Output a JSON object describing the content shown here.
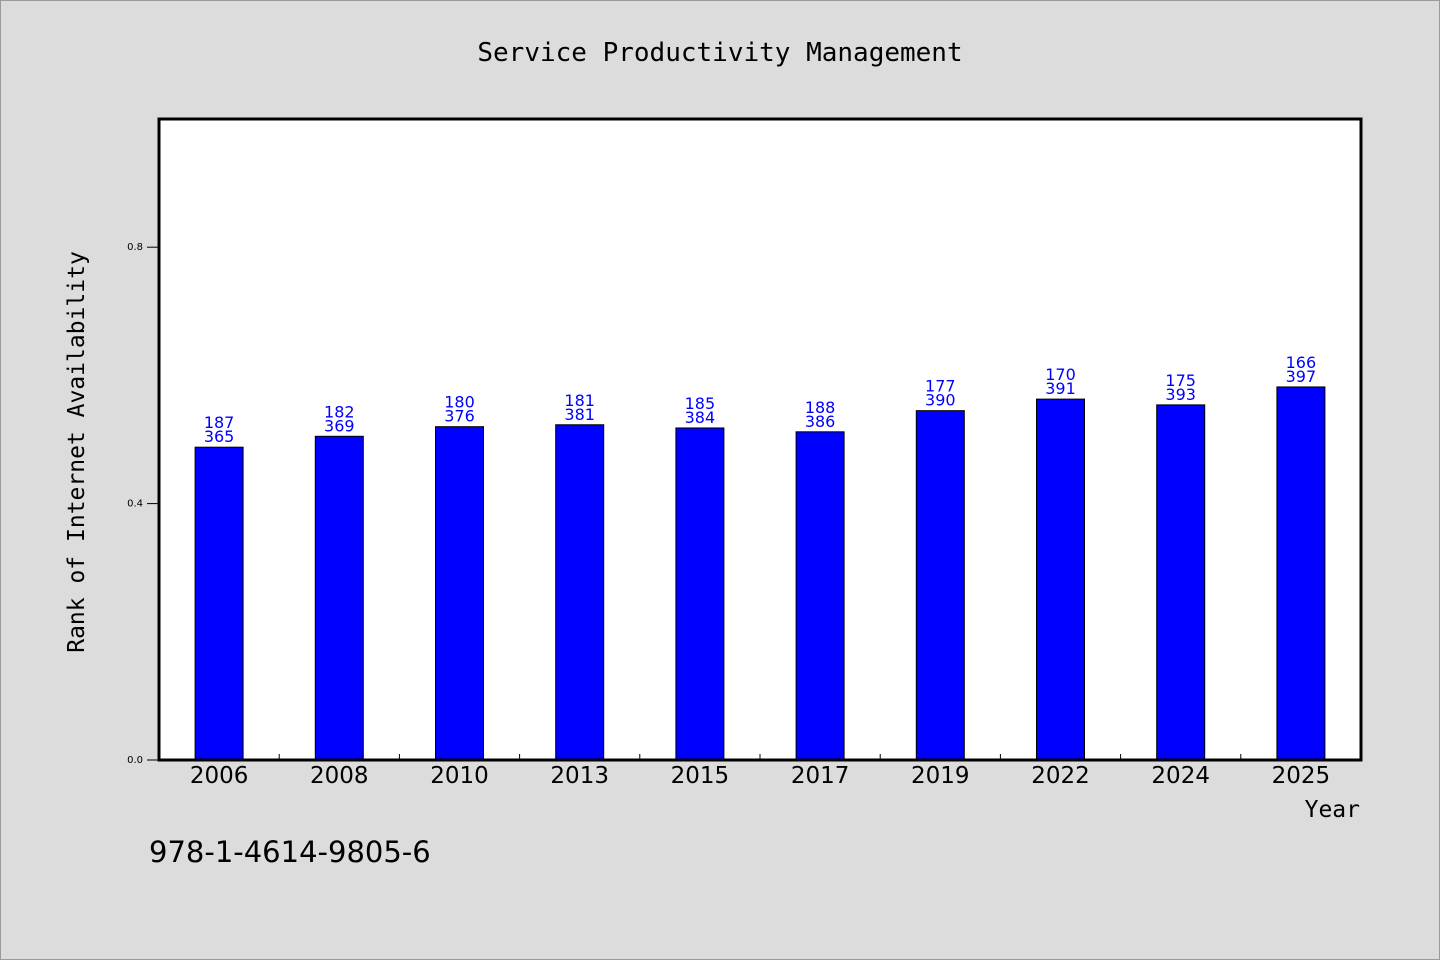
{
  "colors": {
    "background": "#dcdcdc",
    "plot_background": "#ffffff",
    "bar": "#0000ff",
    "data_label": "#0000ff"
  },
  "note": "978-1-4614-9805-6",
  "chart_data": {
    "type": "bar",
    "title": "Service Productivity Management",
    "xlabel": "Year",
    "ylabel": "Rank of Internet Availability",
    "categories": [
      "2006",
      "2008",
      "2010",
      "2013",
      "2015",
      "2017",
      "2019",
      "2022",
      "2024",
      "2025"
    ],
    "values": [
      0.488,
      0.505,
      0.52,
      0.523,
      0.518,
      0.512,
      0.545,
      0.563,
      0.554,
      0.582
    ],
    "labels_top": [
      "187",
      "182",
      "180",
      "181",
      "185",
      "188",
      "177",
      "170",
      "175",
      "166"
    ],
    "labels_bottom": [
      "365",
      "369",
      "376",
      "381",
      "384",
      "386",
      "390",
      "391",
      "393",
      "397"
    ],
    "ylim": [
      0,
      1.0
    ],
    "yticks": [
      0.0,
      0.4,
      0.8
    ],
    "ytick_labels": [
      "0.0",
      "0.4",
      "0.8"
    ],
    "grid": false
  }
}
